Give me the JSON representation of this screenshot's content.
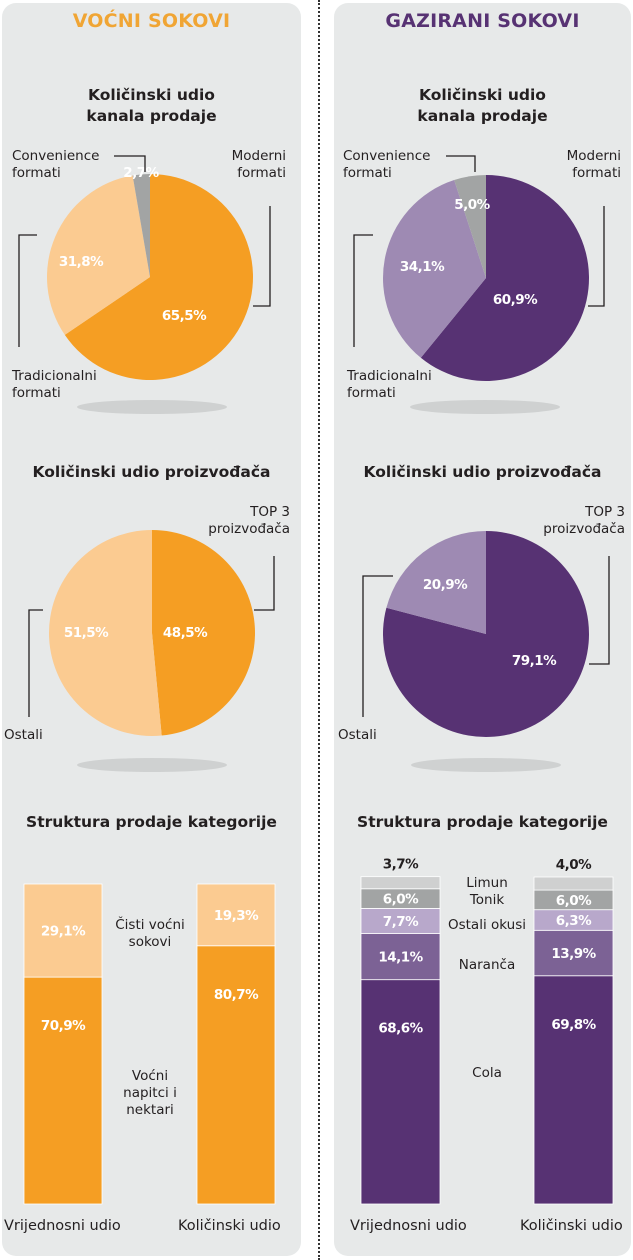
{
  "colors": {
    "orange": "#f59e23",
    "orange_light": "#fbcb91",
    "gray": "#a2a4a4",
    "gray_light": "#cfd0d0",
    "purple": "#573273",
    "purple_mid": "#7c6295",
    "purple_light": "#9e8ab3",
    "purple_pale": "#b8a8cb",
    "title_orange": "#f0a534",
    "title_purple": "#573273"
  },
  "left": {
    "title": "VOĆNI SOKOVI",
    "pie1": {
      "title_line1": "Količinski udio",
      "title_line2": "kanala prodaje",
      "labels": {
        "convenience_1": "Convenience",
        "convenience_2": "formati",
        "moderni_1": "Moderni",
        "moderni_2": "formati",
        "tradicionalni_1": "Tradicionalni",
        "tradicionalni_2": "formati"
      }
    },
    "pie2": {
      "title": "Količinski udio proizvođača",
      "labels": {
        "top3_1": "TOP 3",
        "top3_2": "proizvođača",
        "ostali": "Ostali"
      }
    },
    "bars": {
      "title": "Struktura prodaje kategorije",
      "labels": {
        "cisti_1": "Čisti voćni",
        "cisti_2": "sokovi",
        "vocni_1": "Voćni",
        "vocni_2": "napitci i",
        "vocni_3": "nektari"
      },
      "x1": "Vrijednosni udio",
      "x2": "Količinski udio"
    }
  },
  "right": {
    "title": "GAZIRANI SOKOVI",
    "pie1": {
      "title_line1": "Količinski udio",
      "title_line2": "kanala prodaje",
      "labels": {
        "convenience_1": "Convenience",
        "convenience_2": "formati",
        "moderni_1": "Moderni",
        "moderni_2": "formati",
        "tradicionalni_1": "Tradicionalni",
        "tradicionalni_2": "formati"
      }
    },
    "pie2": {
      "title": "Količinski udio proizvođača",
      "labels": {
        "top3_1": "TOP 3",
        "top3_2": "proizvođača",
        "ostali": "Ostali"
      }
    },
    "bars": {
      "title": "Struktura prodaje kategorije",
      "labels": {
        "limun": "Limun",
        "tonik": "Tonik",
        "ostali": "Ostali okusi",
        "naranca": "Naranča",
        "cola": "Cola"
      },
      "x1": "Vrijednosni udio",
      "x2": "Količinski udio"
    }
  },
  "chart_data": [
    {
      "type": "pie",
      "id": "vocni-kanali",
      "title": "Količinski udio kanala prodaje",
      "slices": [
        {
          "label": "Moderni formati",
          "value": 65.5,
          "text": "65,5%",
          "color": "#f59e23"
        },
        {
          "label": "Tradicionalni formati",
          "value": 31.8,
          "text": "31,8%",
          "color": "#fbcb91"
        },
        {
          "label": "Convenience formati",
          "value": 2.7,
          "text": "2,7%",
          "color": "#a2a4a4"
        }
      ]
    },
    {
      "type": "pie",
      "id": "gazirani-kanali",
      "title": "Količinski udio kanala prodaje",
      "slices": [
        {
          "label": "Moderni formati",
          "value": 60.9,
          "text": "60,9%",
          "color": "#573273"
        },
        {
          "label": "Tradicionalni formati",
          "value": 34.1,
          "text": "34,1%",
          "color": "#9e8ab3"
        },
        {
          "label": "Convenience formati",
          "value": 5.0,
          "text": "5,0%",
          "color": "#a2a4a4"
        }
      ]
    },
    {
      "type": "pie",
      "id": "vocni-proizvodaci",
      "title": "Količinski udio proizvođača",
      "slices": [
        {
          "label": "TOP 3 proizvođača",
          "value": 48.5,
          "text": "48,5%",
          "color": "#f59e23"
        },
        {
          "label": "Ostali",
          "value": 51.5,
          "text": "51,5%",
          "color": "#fbcb91"
        }
      ]
    },
    {
      "type": "pie",
      "id": "gazirani-proizvodaci",
      "title": "Količinski udio proizvođača",
      "slices": [
        {
          "label": "TOP 3 proizvođača",
          "value": 79.1,
          "text": "79,1%",
          "color": "#573273"
        },
        {
          "label": "Ostali",
          "value": 20.9,
          "text": "20,9%",
          "color": "#9e8ab3"
        }
      ]
    },
    {
      "type": "bar",
      "stacked": true,
      "id": "vocni-struktura",
      "title": "Struktura prodaje kategorije",
      "categories": [
        "Vrijednosni udio",
        "Količinski udio"
      ],
      "series": [
        {
          "name": "Voćni napitci i nektari",
          "values": [
            70.9,
            80.7
          ],
          "texts": [
            "70,9%",
            "80,7%"
          ],
          "color": "#f59e23"
        },
        {
          "name": "Čisti voćni sokovi",
          "values": [
            29.1,
            19.3
          ],
          "texts": [
            "29,1%",
            "19,3%"
          ],
          "color": "#fbcb91"
        }
      ],
      "ylim": [
        0,
        100
      ]
    },
    {
      "type": "bar",
      "stacked": true,
      "id": "gazirani-struktura",
      "title": "Struktura prodaje kategorije",
      "categories": [
        "Vrijednosni udio",
        "Količinski udio"
      ],
      "series": [
        {
          "name": "Cola",
          "values": [
            68.6,
            69.8
          ],
          "texts": [
            "68,6%",
            "69,8%"
          ],
          "color": "#573273"
        },
        {
          "name": "Naranča",
          "values": [
            14.1,
            13.9
          ],
          "texts": [
            "14,1%",
            "13,9%"
          ],
          "color": "#7c6295"
        },
        {
          "name": "Ostali okusi",
          "values": [
            7.7,
            6.3
          ],
          "texts": [
            "7,7%",
            "6,3%"
          ],
          "color": "#b8a8cb"
        },
        {
          "name": "Tonik",
          "values": [
            6.0,
            6.0
          ],
          "texts": [
            "6,0%",
            "6,0%"
          ],
          "color": "#a2a4a4"
        },
        {
          "name": "Limun",
          "values": [
            3.7,
            4.0
          ],
          "texts": [
            "3,7%",
            "4,0%"
          ],
          "color": "#cfd0d0"
        }
      ],
      "ylim": [
        0,
        100
      ]
    }
  ]
}
